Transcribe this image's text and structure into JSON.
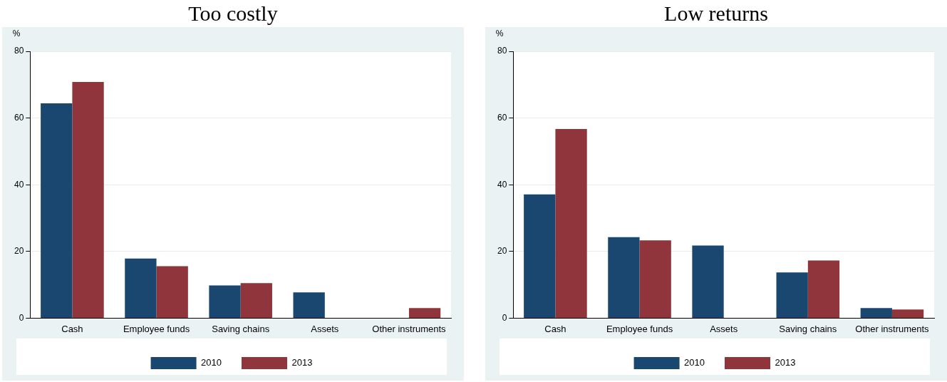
{
  "chart_data": [
    {
      "type": "bar",
      "title": "Too costly",
      "ylabel": "%",
      "categories": [
        "Cash",
        "Employee funds",
        "Saving chains",
        "Assets",
        "Other instruments"
      ],
      "series": [
        {
          "name": "2010",
          "color": "#1a476f",
          "values": [
            64.4,
            17.9,
            9.8,
            7.7,
            null
          ]
        },
        {
          "name": "2013",
          "color": "#90353b",
          "values": [
            70.8,
            15.6,
            10.5,
            null,
            3.0
          ]
        }
      ],
      "ylim": [
        0,
        80
      ],
      "yticks": [
        0,
        20,
        40,
        60,
        80
      ],
      "grid": "y",
      "legend": "bottom"
    },
    {
      "type": "bar",
      "title": "Low returns",
      "ylabel": "%",
      "categories": [
        "Cash",
        "Employee funds",
        "Assets",
        "Saving chains",
        "Other instruments"
      ],
      "series": [
        {
          "name": "2010",
          "color": "#1a476f",
          "values": [
            37.1,
            24.3,
            21.8,
            13.7,
            3.0
          ]
        },
        {
          "name": "2013",
          "color": "#90353b",
          "values": [
            56.7,
            23.3,
            null,
            17.3,
            2.6
          ]
        }
      ],
      "ylim": [
        0,
        80
      ],
      "yticks": [
        0,
        20,
        40,
        60,
        80
      ],
      "grid": "y",
      "legend": "bottom"
    }
  ]
}
